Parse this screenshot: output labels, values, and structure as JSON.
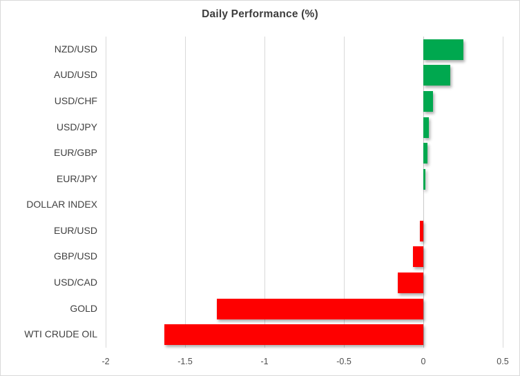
{
  "chart_data": {
    "type": "bar",
    "orientation": "horizontal",
    "title": "Daily Performance (%)",
    "categories": [
      "NZD/USD",
      "AUD/USD",
      "USD/CHF",
      "USD/JPY",
      "EUR/GBP",
      "EUR/JPY",
      "DOLLAR INDEX",
      "EUR/USD",
      "GBP/USD",
      "USD/CAD",
      "GOLD",
      "WTI CRUDE OIL"
    ],
    "values": [
      0.25,
      0.17,
      0.06,
      0.033,
      0.025,
      0.015,
      0,
      -0.02,
      -0.065,
      -0.16,
      -1.3,
      -1.63
    ],
    "xlabel": "",
    "ylabel": "",
    "xlim": [
      -2,
      0.5
    ],
    "xticks": [
      -2,
      -1.5,
      -1,
      -0.5,
      0,
      0.5
    ],
    "xtick_labels": [
      "-2",
      "-1.5",
      "-1",
      "-0.5",
      "0",
      "0.5"
    ],
    "grid": true,
    "legend": false,
    "colors": {
      "positive": "#00A84F",
      "negative": "#FE0000",
      "gridline": "#D9D9D9",
      "text": "#404040",
      "border": "#D9D9D9"
    }
  }
}
